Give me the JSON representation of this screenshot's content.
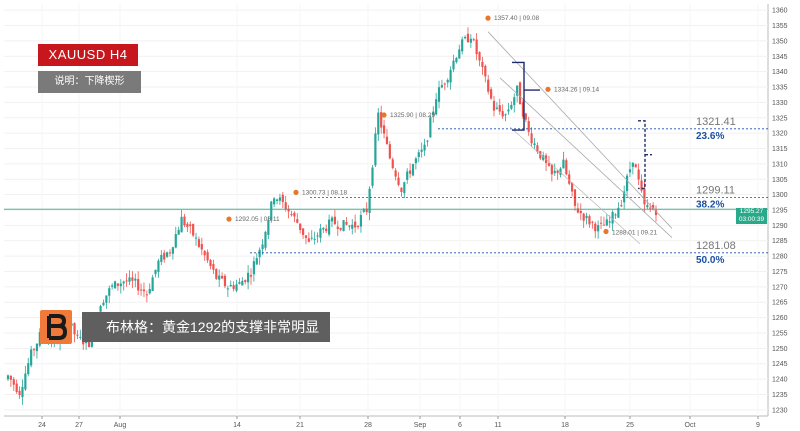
{
  "header": {
    "symbol_label": "XAUUSD  H4",
    "description_label": "说明：下降楔形"
  },
  "banner": {
    "text": "布林格：黄金1292的支撑非常明显"
  },
  "price_tag": {
    "price": "1295.27",
    "countdown": "03:00:39"
  },
  "colors": {
    "up": "#26a69a",
    "down": "#ef5350",
    "accent": "#c8161d",
    "fib": "#1d4fa3",
    "pivot": "#e8762c",
    "price_line": "#2aa98a"
  },
  "chart_data": {
    "type": "candlestick",
    "title": "",
    "xlabel": "",
    "ylabel": "",
    "y_axis_side": "right",
    "ylim": [
      1228,
      1362
    ],
    "y_ticks": [
      1230,
      1235,
      1240,
      1245,
      1250,
      1255,
      1260,
      1265,
      1270,
      1275,
      1280,
      1285,
      1290,
      1295,
      1300,
      1305,
      1310,
      1315,
      1320,
      1325,
      1330,
      1335,
      1340,
      1345,
      1350,
      1355,
      1360
    ],
    "x_ticks": [
      "24",
      "27",
      "Aug",
      "14",
      "21",
      "28",
      "Sep",
      "6",
      "11",
      "18",
      "25",
      "Oct",
      "9"
    ],
    "grid": true,
    "waypoints": [
      [
        "1240",
        1241
      ],
      [
        "1238",
        1236
      ],
      [
        "1250",
        1248
      ],
      [
        "1262",
        1256
      ],
      [
        "1255",
        1251
      ],
      [
        "1272",
        1260
      ],
      [
        "1270",
        1253
      ],
      [
        "1268",
        1252
      ],
      [
        "1275",
        1265
      ],
      [
        "1274",
        1270
      ],
      [
        "1276",
        1272
      ],
      [
        "1281",
        1271
      ],
      [
        "1285",
        1268
      ],
      [
        "1283",
        1278
      ],
      [
        "1288",
        1282
      ],
      [
        "1290",
        1292
      ],
      [
        "1290",
        1287
      ],
      [
        "1282",
        1280
      ],
      [
        "1275",
        1273
      ],
      [
        "1270",
        1270
      ],
      [
        "1276",
        1271
      ],
      [
        "1282",
        1275
      ],
      [
        "1290",
        1285
      ],
      [
        "1295",
        1300
      ],
      [
        "1300",
        1296
      ],
      [
        "1290",
        1291
      ],
      [
        "1285",
        1284
      ],
      [
        "1290",
        1288
      ],
      [
        "1292",
        1291
      ],
      [
        "1300",
        1290
      ],
      [
        "1298",
        1290
      ],
      [
        "1300",
        1295
      ],
      [
        "1325",
        1326
      ],
      [
        "1318",
        1312
      ],
      [
        "1305",
        1302
      ],
      [
        "1312",
        1310
      ],
      [
        "1320",
        1315
      ],
      [
        "1330",
        1332
      ],
      [
        "1340",
        1339
      ],
      [
        "1345",
        1348
      ],
      [
        "1357",
        1352
      ],
      [
        "1344",
        1340
      ],
      [
        "1335",
        1328
      ],
      [
        "1332",
        1326
      ],
      [
        "1330",
        1334
      ],
      [
        "1326",
        1320
      ],
      [
        "1315",
        1313
      ],
      [
        "1308",
        1306
      ],
      [
        "1312",
        1310
      ],
      [
        "1300",
        1296
      ],
      [
        "1290",
        1292
      ],
      [
        "1288",
        1289
      ],
      [
        "1292",
        1291
      ],
      [
        "1300",
        1298
      ],
      [
        "1310",
        1312
      ],
      [
        "1300",
        1296
      ],
      [
        "1295",
        1295
      ]
    ],
    "pivot_points": [
      {
        "price": "1357.40",
        "date": "09.08",
        "y": 1357.4
      },
      {
        "price": "1334.26",
        "date": "09.14",
        "y": 1334.26
      },
      {
        "price": "1325.90",
        "date": "08.29",
        "y": 1325.9
      },
      {
        "price": "1300.73",
        "date": "08.18",
        "y": 1300.73
      },
      {
        "price": "1292.05",
        "date": "08.11",
        "y": 1292.05
      },
      {
        "price": "1288.01",
        "date": "09.21",
        "y": 1288.01
      }
    ],
    "fib_levels": [
      {
        "value": "1321.41",
        "percent": "23.6%",
        "y": 1321.41
      },
      {
        "value": "1299.11",
        "percent": "38.2%",
        "y": 1299.11
      },
      {
        "value": "1281.08",
        "percent": "50.0%",
        "y": 1281.08
      }
    ],
    "current_price": 1295.27
  }
}
